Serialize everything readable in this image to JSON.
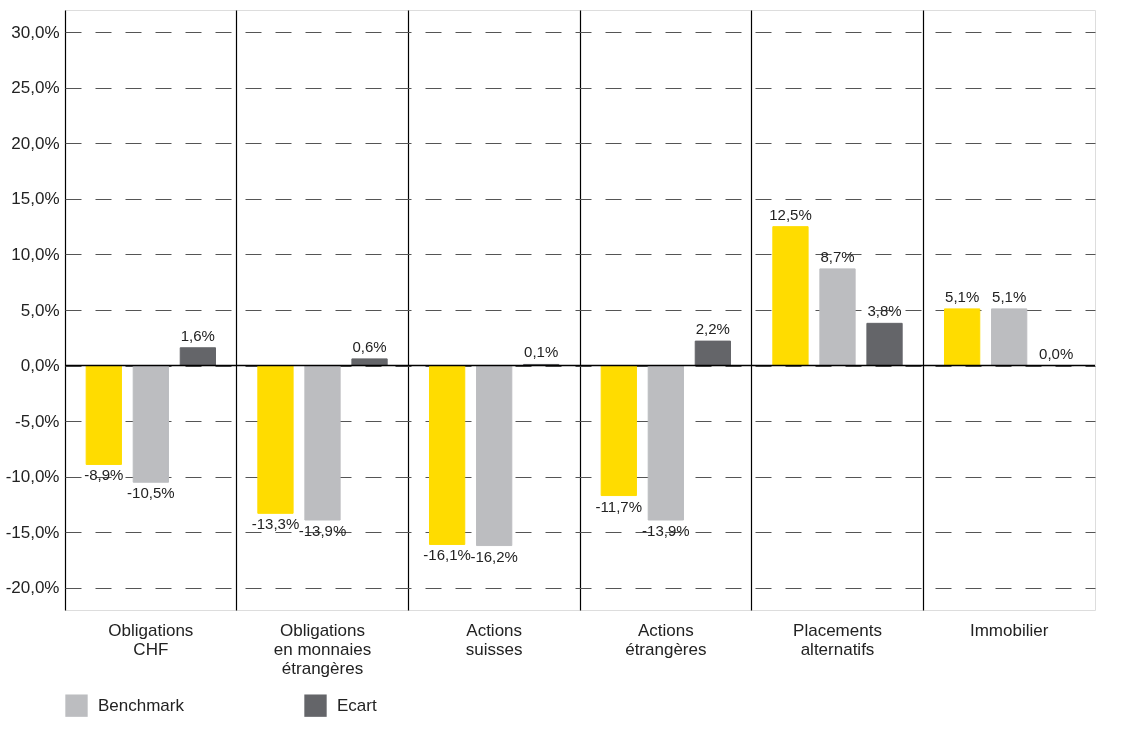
{
  "chart_data": {
    "type": "bar",
    "categories": [
      "Obligations CHF",
      "Obligations en monnaies étrangères",
      "Actions suisses",
      "Actions étrangères",
      "Placements alternatifs",
      "Immobilier"
    ],
    "series": [
      {
        "color": "#ffdc00",
        "values": [
          -8.9,
          -13.3,
          -16.1,
          -11.7,
          12.5,
          5.1
        ],
        "value_labels": [
          "-8,9%",
          "-13,3%",
          "-16,1%",
          "-11,7%",
          "12,5%",
          "5,1%"
        ]
      },
      {
        "name": "Benchmark",
        "color": "#bcbdc0",
        "values": [
          -10.5,
          -13.9,
          -16.2,
          -13.9,
          8.7,
          5.1
        ],
        "value_labels": [
          "-10,5%",
          "-13,9%",
          "-16,2%",
          "-13,9%",
          "8,7%",
          "5,1%"
        ]
      },
      {
        "name": "Ecart",
        "color": "#646569",
        "values": [
          1.6,
          0.6,
          0.1,
          2.2,
          3.8,
          0.0
        ],
        "value_labels": [
          "1,6%",
          "0,6%",
          "0,1%",
          "2,2%",
          "3,8%",
          "0,0%"
        ]
      }
    ],
    "ylim": [
      -22,
      32
    ],
    "yticks": [
      {
        "value": -20,
        "label": "-20,0%"
      },
      {
        "value": -15,
        "label": "-15,0%"
      },
      {
        "value": -10,
        "label": "-10,0%"
      },
      {
        "value": -5,
        "label": "-5,0%"
      },
      {
        "value": 0,
        "label": "0,0%"
      },
      {
        "value": 5,
        "label": "5,0%"
      },
      {
        "value": 10,
        "label": "10,0%"
      },
      {
        "value": 15,
        "label": "15,0%"
      },
      {
        "value": 20,
        "label": "20,0%"
      },
      {
        "value": 25,
        "label": "25,0%"
      },
      {
        "value": 30,
        "label": "30,0%"
      }
    ],
    "ref_lines": [
      {
        "axis": "y",
        "value": 0,
        "color": "#000000"
      }
    ],
    "grid": true,
    "legend": "bottom"
  }
}
